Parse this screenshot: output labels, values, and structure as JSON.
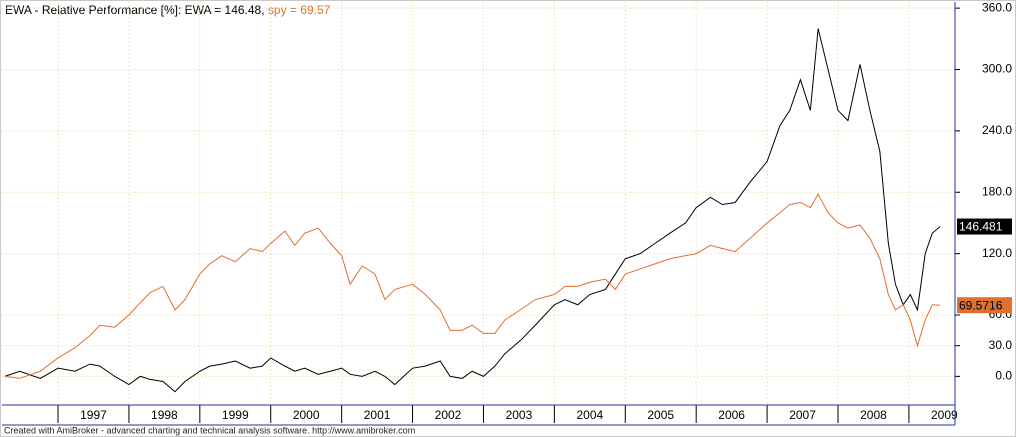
{
  "chart_data": {
    "type": "line",
    "title": "EWA - Relative Performance [%]:",
    "footer": "Created with AmiBroker - advanced charting and technical analysis software. http://www.amibroker.com",
    "x": [
      1996.25,
      1996.46,
      1996.75,
      1997.0,
      1997.24,
      1997.45,
      1997.59,
      1997.8,
      1998.0,
      1998.16,
      1998.3,
      1998.48,
      1998.65,
      1998.79,
      1999.0,
      1999.14,
      1999.31,
      1999.5,
      1999.71,
      1999.88,
      2000.0,
      2000.2,
      2000.34,
      2000.48,
      2000.67,
      2000.84,
      2001.0,
      2001.12,
      2001.29,
      2001.47,
      2001.61,
      2001.75,
      2002.0,
      2002.18,
      2002.39,
      2002.53,
      2002.7,
      2002.84,
      2003.0,
      2003.16,
      2003.3,
      2003.52,
      2003.73,
      2004.0,
      2004.15,
      2004.33,
      2004.5,
      2004.72,
      2004.86,
      2005.0,
      2005.21,
      2005.42,
      2005.63,
      2005.85,
      2006.0,
      2006.2,
      2006.37,
      2006.55,
      2006.76,
      2007.0,
      2007.18,
      2007.32,
      2007.47,
      2007.61,
      2007.72,
      2007.86,
      2008.0,
      2008.14,
      2008.31,
      2008.45,
      2008.59,
      2008.71,
      2008.81,
      2008.92,
      2009.02,
      2009.12,
      2009.23,
      2009.33,
      2009.44
    ],
    "xlim": [
      1996.21,
      2009.65
    ],
    "xticks": [
      1997,
      1998,
      1999,
      2000,
      2001,
      2002,
      2003,
      2004,
      2005,
      2006,
      2007,
      2008,
      2009
    ],
    "ylim": [
      -28,
      366
    ],
    "yticks": [
      {
        "value": 0,
        "label": "0.0"
      },
      {
        "value": 30,
        "label": "30.0"
      },
      {
        "value": 60,
        "label": "60.0"
      },
      {
        "value": 120,
        "label": "120.0"
      },
      {
        "value": 180,
        "label": "180.0"
      },
      {
        "value": 240,
        "label": "240.0"
      },
      {
        "value": 300,
        "label": "300.0"
      },
      {
        "value": 360,
        "label": "360.0"
      }
    ],
    "grid": true,
    "series": [
      {
        "name": "EWA",
        "legend": "EWA = 146.48,",
        "color": "#000000",
        "end_label": "146.481",
        "end_label_text_color": "#ffffff",
        "values": [
          0,
          5,
          -2,
          8,
          5,
          12,
          10,
          0,
          -8,
          0,
          -3,
          -5,
          -15,
          -5,
          5,
          10,
          12,
          15,
          8,
          10,
          18,
          10,
          5,
          8,
          2,
          5,
          8,
          2,
          0,
          5,
          0,
          -8,
          8,
          10,
          15,
          0,
          -2,
          5,
          0,
          10,
          22,
          35,
          50,
          70,
          75,
          70,
          80,
          85,
          100,
          115,
          120,
          130,
          140,
          150,
          165,
          175,
          168,
          170,
          190,
          210,
          245,
          260,
          290,
          260,
          340,
          300,
          260,
          250,
          305,
          260,
          220,
          130,
          90,
          70,
          80,
          65,
          120,
          140,
          146.481
        ]
      },
      {
        "name": "spy",
        "legend": "spy = 69.57",
        "color": "#e07030",
        "end_label": "69.5716",
        "end_label_text_color": "#000000",
        "values": [
          0,
          -2,
          5,
          18,
          28,
          40,
          50,
          48,
          60,
          72,
          82,
          88,
          65,
          75,
          100,
          110,
          118,
          112,
          125,
          122,
          130,
          142,
          128,
          140,
          145,
          130,
          118,
          90,
          108,
          100,
          75,
          85,
          90,
          80,
          65,
          45,
          45,
          50,
          42,
          42,
          55,
          65,
          75,
          80,
          88,
          88,
          92,
          95,
          85,
          100,
          105,
          110,
          115,
          118,
          120,
          128,
          125,
          122,
          135,
          150,
          160,
          168,
          170,
          165,
          178,
          160,
          150,
          145,
          148,
          135,
          115,
          80,
          65,
          70,
          55,
          30,
          55,
          70,
          69.5716
        ]
      }
    ]
  }
}
